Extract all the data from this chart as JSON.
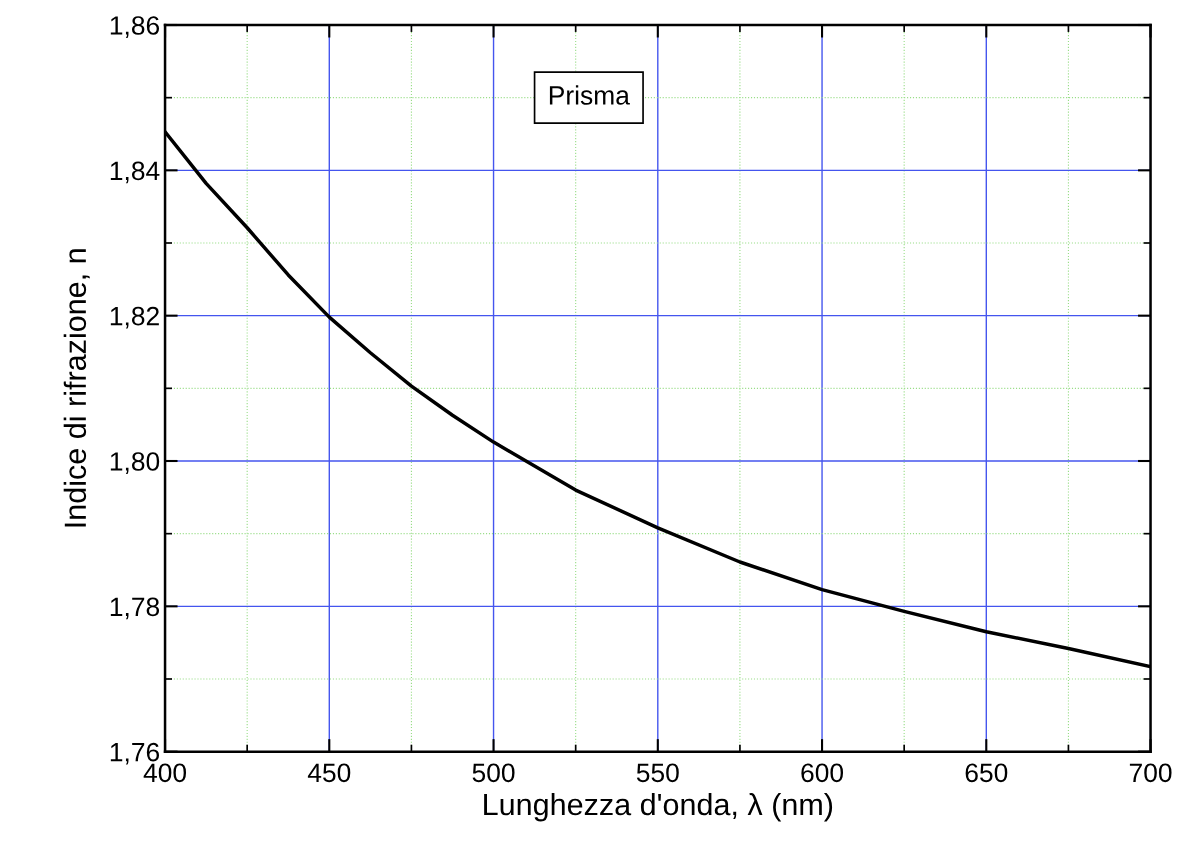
{
  "chart_data": {
    "type": "line",
    "annotations": [
      "Prisma"
    ],
    "xlabel": "Lunghezza d'onda, λ (nm)",
    "ylabel": "Indice di rifrazione, n",
    "series": [
      {
        "color": "#000000",
        "x": [
          400,
          412.5,
          425,
          437.5,
          450,
          462.5,
          475,
          487.5,
          500,
          525,
          550,
          575,
          600,
          625,
          650,
          675,
          700
        ],
        "values": [
          1.8453,
          1.8382,
          1.8321,
          1.8256,
          1.8198,
          1.8149,
          1.8103,
          1.8063,
          1.8026,
          1.796,
          1.7908,
          1.7861,
          1.7823,
          1.7793,
          1.7765,
          1.7742,
          1.7717
        ]
      }
    ],
    "xlim": [
      400,
      700
    ],
    "xticks": [
      400,
      {
        "value": 425,
        "label": null
      },
      450,
      {
        "value": 475,
        "label": null
      },
      500,
      {
        "value": 525,
        "label": null
      },
      550,
      {
        "value": 575,
        "label": null
      },
      600,
      {
        "value": 625,
        "label": null
      },
      650,
      {
        "value": 675,
        "label": null
      },
      700
    ],
    "ylim": [
      1.76,
      1.86
    ],
    "yticks": [
      {
        "value": 1.76,
        "label": "1,76"
      },
      {
        "value": 1.77,
        "label": null
      },
      {
        "value": 1.78,
        "label": "1,78"
      },
      {
        "value": 1.79,
        "label": null
      },
      {
        "value": 1.8,
        "label": "1,80"
      },
      {
        "value": 1.81,
        "label": null
      },
      {
        "value": 1.82,
        "label": "1,82"
      },
      {
        "value": 1.83,
        "label": null
      },
      {
        "value": 1.84,
        "label": "1,84"
      },
      {
        "value": 1.85,
        "label": null
      },
      {
        "value": 1.86,
        "label": "1,86"
      }
    ],
    "grid": true,
    "line_style": "solid",
    "marker": "none"
  }
}
